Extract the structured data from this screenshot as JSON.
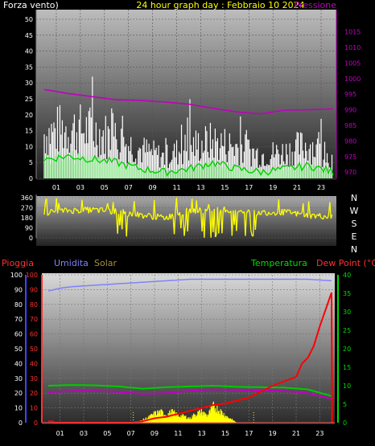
{
  "header": {
    "left_label": "Forza vento)",
    "title": "24 hour graph day : Febbraio 10 2024",
    "right_label": "Pressione"
  },
  "dir_labels": [
    "N",
    "W",
    "S",
    "E",
    "N"
  ],
  "bottom_labels": {
    "pioggia": "Pioggia",
    "umidita": "Umidita",
    "solar": "Solar",
    "temperatura": "Temperatura",
    "dewpoint": "Dew Point (°C)"
  },
  "colors": {
    "wind_gust": "#ffffff",
    "wind_avg": "#00d000",
    "wind_light": "#aaffaa",
    "pressure": "#c000c0",
    "direction": "#ffff00",
    "humidity": "#8080ff",
    "rain": "#ff0000",
    "temperature": "#00cc00",
    "dewpoint": "#c000c0",
    "solar": "#ffff00",
    "title": "#ffff00",
    "text_white": "#ffffff",
    "axis_blue": "#4444ff",
    "axis_red": "#ff3030",
    "axis_green": "#00dd00"
  },
  "chart_data": [
    {
      "type": "line",
      "name_id": "wind-pressure",
      "x_ticks": [
        "01",
        "03",
        "05",
        "07",
        "09",
        "11",
        "13",
        "15",
        "17",
        "19",
        "21",
        "23"
      ],
      "y_left_ticks": [
        0,
        5,
        10,
        15,
        20,
        25,
        30,
        35,
        40,
        45,
        50
      ],
      "y_left_range": [
        0,
        50
      ],
      "y_right_ticks": [
        970,
        975,
        980,
        985,
        990,
        995,
        1000,
        1005,
        1010,
        1015
      ],
      "y_right_range": [
        968,
        1019
      ],
      "pressure": {
        "hours": [
          0,
          2,
          4,
          6,
          8,
          10,
          12,
          14,
          16,
          18,
          20,
          22,
          24
        ],
        "values": [
          996.5,
          995.2,
          994.2,
          993.2,
          993.0,
          992.5,
          991.8,
          990.5,
          989.3,
          988.7,
          989.9,
          990.0,
          990.3
        ]
      },
      "wind_gust_band": {
        "hours": [
          0,
          2,
          4,
          6,
          8,
          10,
          12,
          14,
          16,
          18,
          20,
          22,
          24
        ],
        "values": [
          17,
          19,
          18,
          15,
          11,
          8,
          12,
          14,
          12,
          9,
          10,
          13,
          7
        ]
      },
      "wind_avg": {
        "hours": [
          0,
          2,
          4,
          6,
          8,
          10,
          12,
          14,
          16,
          18,
          20,
          22,
          24
        ],
        "values": [
          6,
          7,
          6,
          5,
          3,
          2,
          3,
          5,
          3,
          2,
          3,
          4,
          2
        ]
      }
    },
    {
      "type": "scatter",
      "name_id": "direction",
      "y_ticks": [
        0,
        90,
        180,
        270,
        360
      ],
      "y_range": [
        0,
        360
      ],
      "typical": {
        "hours": [
          0,
          2,
          4,
          6,
          8,
          10,
          12,
          14,
          16,
          18,
          20,
          22,
          24
        ],
        "values": [
          225,
          245,
          250,
          235,
          205,
          180,
          245,
          250,
          250,
          230,
          230,
          200,
          190
        ]
      }
    },
    {
      "type": "line",
      "name_id": "rain-humidity-temp",
      "x_ticks": [
        "01",
        "03",
        "05",
        "07",
        "09",
        "11",
        "13",
        "15",
        "17",
        "19",
        "21",
        "23"
      ],
      "y_left_ticks": [
        0,
        10,
        20,
        30,
        40,
        50,
        60,
        70,
        80,
        90,
        100
      ],
      "y_left_range": [
        0,
        100
      ],
      "y_right_ticks": [
        0,
        5,
        10,
        15,
        20,
        25,
        30,
        35,
        40
      ],
      "y_right_range": [
        0,
        40
      ],
      "humidity": {
        "hours": [
          0,
          1,
          2,
          4,
          6,
          8,
          10,
          12,
          14,
          16,
          18,
          20,
          22,
          24
        ],
        "values": [
          89,
          91,
          92,
          93,
          94,
          95,
          96,
          97,
          97,
          97,
          97,
          97,
          97,
          96
        ]
      },
      "rain": {
        "hours": [
          0,
          0.4,
          0.45,
          7,
          8,
          9,
          10,
          11,
          12,
          13,
          14,
          15,
          16,
          17,
          18,
          19,
          20,
          21,
          21.5,
          22,
          22.5,
          23,
          24,
          24.05
        ],
        "values": [
          1,
          1,
          0,
          0,
          1,
          3,
          4,
          6,
          8,
          10,
          12,
          13,
          15,
          17,
          21,
          25,
          28,
          31,
          40,
          44,
          52,
          65,
          88,
          0
        ]
      },
      "temperature": {
        "hours": [
          0,
          2,
          4,
          6,
          8,
          10,
          12,
          14,
          16,
          18,
          20,
          22,
          24
        ],
        "values": [
          10,
          10.2,
          10.1,
          9.8,
          9.2,
          9.6,
          9.8,
          10,
          9.7,
          9.6,
          9.5,
          9,
          7.2
        ]
      },
      "dewpoint": {
        "hours": [
          0,
          2,
          4,
          6,
          8,
          10,
          12,
          14,
          16,
          18,
          20,
          22,
          24
        ],
        "values": [
          8.2,
          8.6,
          8.6,
          8.3,
          7.8,
          8,
          8.6,
          9,
          8.8,
          8.7,
          8.6,
          8,
          6.5
        ]
      },
      "solar": {
        "hours": [
          7.2,
          7.8,
          8.5,
          9,
          9.5,
          10,
          10.5,
          11,
          11.5,
          12,
          12.5,
          13,
          13.5,
          14,
          14.5,
          15,
          15.5,
          16
        ],
        "values": [
          0,
          0.5,
          1.5,
          2.5,
          3,
          2.2,
          3,
          2,
          1.8,
          1.2,
          2.5,
          3,
          2,
          4.5,
          3.5,
          2,
          1,
          0
        ]
      }
    }
  ]
}
